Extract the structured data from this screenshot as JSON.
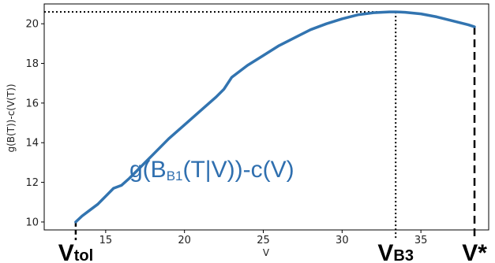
{
  "chart_data": {
    "type": "line",
    "title": "",
    "xlabel": "V",
    "ylabel": "g(B(T))-c(V(T))",
    "xlim": [
      11.1,
      39.3
    ],
    "ylim": [
      9.6,
      21.0
    ],
    "xticks": [
      "15",
      "20",
      "25",
      "30",
      "35"
    ],
    "yticks": [
      "10",
      "12",
      "14",
      "16",
      "18",
      "20"
    ],
    "xtick_values": [
      15,
      20,
      25,
      30,
      35
    ],
    "ytick_values": [
      10,
      12,
      14,
      16,
      18,
      20
    ],
    "grid": false,
    "line_color": "#3274b0",
    "series": [
      {
        "x": [
          13.1,
          13.5,
          14.0,
          14.5,
          15.0,
          15.5,
          16.0,
          16.5,
          17.0,
          17.5,
          18.0,
          19.0,
          20.0,
          21.0,
          22.0,
          22.5,
          23.0,
          24.0,
          25.0,
          26.0,
          27.0,
          28.0,
          29.0,
          30.0,
          31.0,
          32.0,
          33.0,
          33.4,
          34.0,
          35.0,
          36.0,
          37.0,
          38.0,
          38.4
        ],
        "y": [
          10.0,
          10.3,
          10.6,
          10.9,
          11.3,
          11.7,
          11.85,
          12.2,
          12.6,
          13.0,
          13.4,
          14.2,
          14.9,
          15.6,
          16.3,
          16.7,
          17.3,
          17.9,
          18.4,
          18.9,
          19.3,
          19.7,
          20.0,
          20.25,
          20.45,
          20.56,
          20.6,
          20.6,
          20.58,
          20.5,
          20.35,
          20.15,
          19.95,
          19.85
        ]
      }
    ],
    "annotation": {
      "main": "g(B",
      "sub": "B1",
      "rest": "(T|V))-c(V)"
    },
    "markers": [
      {
        "label": "V",
        "sub": "tol",
        "x": 13.1,
        "y": 10.0
      },
      {
        "label": "V",
        "sub": "B3",
        "x": 33.4,
        "y": 20.6
      },
      {
        "label": "V*",
        "sub": "",
        "x": 38.4,
        "y": 19.85
      }
    ]
  }
}
